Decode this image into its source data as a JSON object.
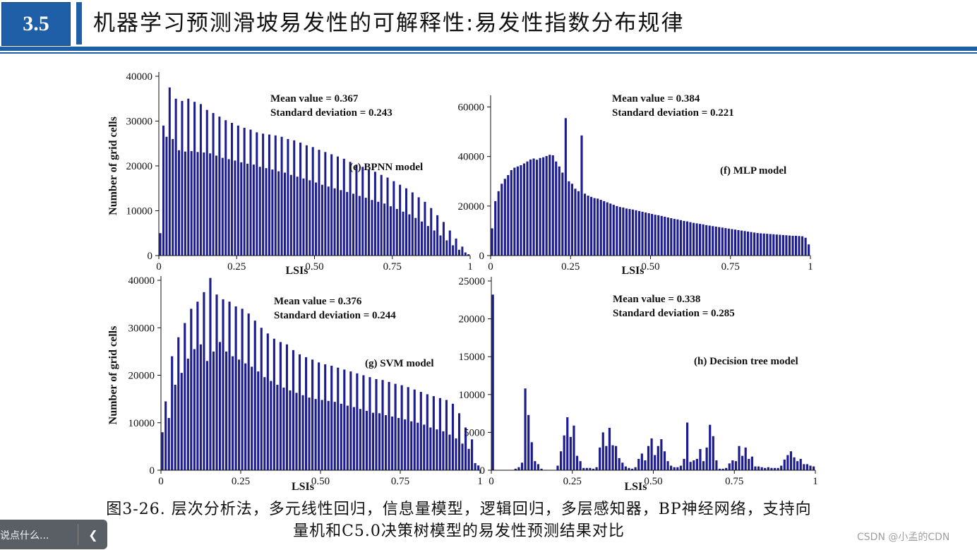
{
  "slide": {
    "number": "3.5",
    "title": "机器学习预测滑坡易发性的可解释性:易发性指数分布规律"
  },
  "caption": {
    "line1": "图3-26. 层次分析法，多元线性回归，信息量模型，逻辑回归，多层感知器，BP神经网络，支持向",
    "line2": "量机和C5.0决策树模型的易发性预测结果对比"
  },
  "comment_box": {
    "placeholder": "说点什么...",
    "collapse_icon": "chevron-left-icon"
  },
  "watermark": "CSDN @小孟的CDN",
  "colors": {
    "accent": "#1f5fa8",
    "bar": "#1c1c8f"
  },
  "chart_data": [
    {
      "type": "bar",
      "panel": "e",
      "model_label": "(e) BPNN model",
      "mean_label": "Mean value = 0.367",
      "sd_label": "Standard deviation = 0.243",
      "xlabel": "LSIs",
      "ylabel": "Number of grid cells",
      "xlim": [
        0,
        1
      ],
      "ylim": [
        0,
        40000
      ],
      "xticks": [
        "0",
        "0.25",
        "0.50",
        "0.75",
        "1"
      ],
      "yticks": [
        "0",
        "10000",
        "20000",
        "30000",
        "40000"
      ],
      "values": [
        5000,
        29000,
        26500,
        37500,
        26000,
        35000,
        23500,
        34500,
        23200,
        35000,
        23300,
        34300,
        23100,
        33800,
        23000,
        32500,
        22800,
        31800,
        22300,
        31000,
        21800,
        30200,
        21500,
        29600,
        21200,
        29000,
        20800,
        28500,
        20500,
        28100,
        20300,
        27500,
        19800,
        27200,
        19500,
        27000,
        19200,
        26800,
        18800,
        26500,
        18500,
        26000,
        18000,
        25700,
        17600,
        25200,
        17200,
        24600,
        16800,
        24200,
        16300,
        23600,
        15800,
        23100,
        15400,
        22600,
        15000,
        22100,
        14600,
        21600,
        14200,
        20900,
        13800,
        20300,
        13300,
        19800,
        12900,
        19200,
        12400,
        18700,
        12000,
        18000,
        11600,
        17400,
        11000,
        16600,
        10400,
        15800,
        9800,
        15000,
        9200,
        14100,
        8400,
        13000,
        7600,
        12000,
        6600,
        10600,
        5600,
        9000,
        4500,
        7500,
        3400,
        5600,
        2300,
        3800,
        1300,
        2000,
        700,
        300
      ]
    },
    {
      "type": "bar",
      "panel": "f",
      "model_label": "(f) MLP model",
      "mean_label": "Mean value = 0.384",
      "sd_label": "Standard deviation = 0.221",
      "xlabel": "LSIs",
      "ylabel": "",
      "xlim": [
        0,
        1
      ],
      "ylim": [
        0,
        63000
      ],
      "xticks": [
        "0",
        "0.25",
        "0.50",
        "0.75",
        "1"
      ],
      "yticks": [
        "0",
        "20000",
        "40000",
        "60000"
      ],
      "values": [
        11000,
        22000,
        26000,
        29000,
        31000,
        32500,
        34500,
        35500,
        36000,
        36500,
        37200,
        38000,
        38800,
        39200,
        38700,
        39400,
        39700,
        40200,
        40700,
        40500,
        38000,
        36000,
        33500,
        55500,
        30000,
        29000,
        27000,
        26000,
        48500,
        25000,
        24200,
        23700,
        23200,
        23000,
        22500,
        22000,
        21500,
        21000,
        20500,
        20000,
        19600,
        19400,
        19000,
        18800,
        18600,
        18300,
        18000,
        17700,
        17400,
        17100,
        16800,
        16500,
        16300,
        16000,
        15700,
        15400,
        15100,
        14800,
        14600,
        14300,
        14000,
        13800,
        13500,
        13200,
        13000,
        12800,
        12600,
        12300,
        12100,
        11900,
        11700,
        11500,
        11300,
        11100,
        10900,
        10700,
        10500,
        10300,
        10100,
        9900,
        9700,
        9500,
        9300,
        9100,
        9000,
        8900,
        8800,
        8700,
        8600,
        8500,
        8400,
        8300,
        8200,
        8100,
        8000,
        8000,
        7900,
        7800,
        7200,
        4500
      ]
    },
    {
      "type": "bar",
      "panel": "g",
      "model_label": "(g) SVM model",
      "mean_label": "Mean value = 0.376",
      "sd_label": "Standard deviation = 0.244",
      "xlabel": "LSIs",
      "ylabel": "Number of grid cells",
      "xlim": [
        0,
        1
      ],
      "ylim": [
        0,
        40000
      ],
      "xticks": [
        "0",
        "0.25",
        "0.50",
        "0.75",
        "1"
      ],
      "yticks": [
        "0",
        "10000",
        "20000",
        "30000",
        "40000"
      ],
      "values": [
        8000,
        14500,
        11000,
        24000,
        18000,
        28000,
        20500,
        31000,
        23500,
        34000,
        25500,
        35500,
        26500,
        37500,
        23000,
        40500,
        25000,
        37000,
        27000,
        36000,
        25000,
        35500,
        24000,
        34500,
        23300,
        34000,
        22500,
        33000,
        21800,
        31500,
        20800,
        30000,
        19600,
        28800,
        18800,
        27700,
        18000,
        27000,
        17400,
        26500,
        16800,
        25300,
        16300,
        24400,
        15800,
        23800,
        15300,
        23300,
        15000,
        22700,
        14800,
        22300,
        14600,
        22000,
        14400,
        21600,
        14000,
        21200,
        13600,
        20800,
        13300,
        20400,
        12900,
        20000,
        12500,
        19600,
        12100,
        19200,
        12000,
        19000,
        11600,
        18600,
        11300,
        18200,
        11000,
        17900,
        10700,
        17500,
        10300,
        17000,
        10000,
        16500,
        9600,
        16000,
        9000,
        15600,
        8600,
        15200,
        8200,
        14800,
        7500,
        14000,
        6700,
        12000,
        5600,
        9000,
        4500,
        6500,
        1500,
        1000
      ]
    },
    {
      "type": "bar",
      "panel": "h",
      "model_label": "(h) Decision tree model",
      "mean_label": "Mean value = 0.338",
      "sd_label": "Standard deviation = 0.285",
      "xlabel": "LSIs",
      "ylabel": "",
      "xlim": [
        0,
        1
      ],
      "ylim": [
        0,
        25000
      ],
      "xticks": [
        "0",
        "0.25",
        "0.50",
        "0.75",
        "1"
      ],
      "yticks": [
        "0",
        "5000",
        "10000",
        "15000",
        "20000",
        "25000"
      ],
      "values": [
        23200,
        0,
        0,
        0,
        0,
        0,
        0,
        200,
        400,
        1000,
        10800,
        7300,
        3700,
        1200,
        800,
        200,
        0,
        0,
        0,
        0,
        600,
        2500,
        4600,
        7000,
        4400,
        5900,
        1900,
        1200,
        300,
        300,
        300,
        200,
        400,
        3000,
        5000,
        3200,
        5600,
        3300,
        3200,
        1600,
        1000,
        500,
        300,
        200,
        400,
        1500,
        2200,
        1300,
        3200,
        4200,
        2000,
        3200,
        4100,
        2500,
        1200,
        600,
        400,
        400,
        600,
        1500,
        6300,
        1100,
        1300,
        1500,
        2800,
        1200,
        3000,
        6000,
        4500,
        1300,
        200,
        200,
        300,
        900,
        1300,
        1200,
        3200,
        1900,
        3000,
        1500,
        1800,
        500,
        500,
        400,
        300,
        400,
        300,
        300,
        300,
        600,
        1400,
        2000,
        2500,
        1700,
        1200,
        1500,
        800,
        800,
        600,
        500
      ]
    }
  ]
}
